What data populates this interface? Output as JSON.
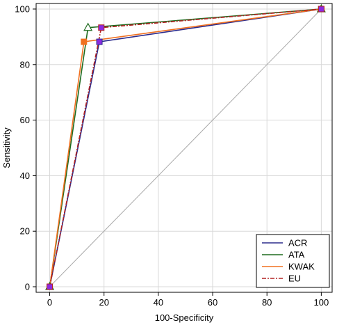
{
  "chart_data": {
    "type": "line",
    "xlabel": "100-Specificity",
    "ylabel": "Sensitivity",
    "xlim": [
      -5,
      104
    ],
    "ylim": [
      -2,
      102
    ],
    "xticks": [
      0,
      20,
      40,
      60,
      80,
      100
    ],
    "yticks": [
      0,
      20,
      40,
      60,
      80,
      100
    ],
    "grid": true,
    "legend_position": "bottom-right",
    "reference_line": {
      "x": [
        0,
        100
      ],
      "y": [
        0,
        100
      ],
      "color": "#aaaaaa"
    },
    "series": [
      {
        "name": "ACR",
        "color": "#2b2b8c",
        "dash": "",
        "marker": "square",
        "marker_color": "#8a2be2",
        "x": [
          0,
          18.3,
          100
        ],
        "y": [
          0,
          88.2,
          100
        ]
      },
      {
        "name": "ATA",
        "color": "#1f6b1f",
        "dash": "",
        "marker": "triangle",
        "marker_color": "#ffffff",
        "x": [
          0,
          14.1,
          100
        ],
        "y": [
          0,
          93.3,
          100
        ]
      },
      {
        "name": "KWAK",
        "color": "#f07020",
        "dash": "",
        "marker": "square",
        "marker_color": "#f07020",
        "x": [
          0,
          12.6,
          100
        ],
        "y": [
          0,
          88.2,
          100
        ]
      },
      {
        "name": "EU",
        "color": "#b22222",
        "dash": "6,2,2,2",
        "marker": "square",
        "marker_color": "#8a2be2",
        "x": [
          0,
          19.0,
          100
        ],
        "y": [
          0,
          93.3,
          100
        ]
      }
    ]
  }
}
